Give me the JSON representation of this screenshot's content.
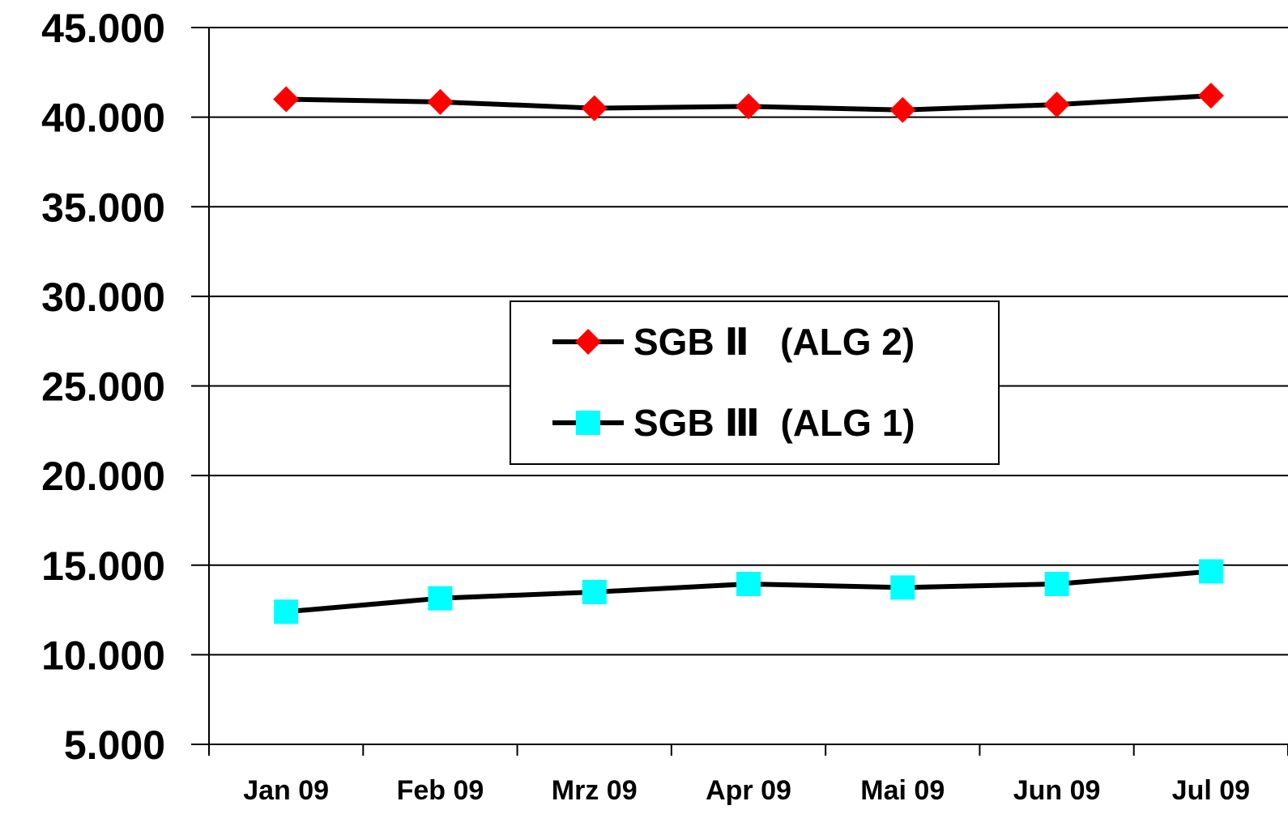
{
  "chart_data": {
    "type": "line",
    "categories": [
      "Jan 09",
      "Feb 09",
      "Mrz 09",
      "Apr 09",
      "Mai 09",
      "Jun 09",
      "Jul 09"
    ],
    "series": [
      {
        "name": "SGB Ⅱ   (ALG 2)",
        "values": [
          41000,
          40850,
          40500,
          40600,
          40400,
          40700,
          41200
        ],
        "marker": "diamond",
        "marker_color": "#ff0000",
        "line_color": "#000000"
      },
      {
        "name": "SGB Ⅲ  (ALG 1)",
        "values": [
          12400,
          13150,
          13500,
          13950,
          13750,
          13950,
          14650
        ],
        "marker": "square",
        "marker_color": "#00ffff",
        "line_color": "#000000"
      }
    ],
    "title": "",
    "xlabel": "",
    "ylabel": "",
    "ylim": [
      5000,
      45000
    ],
    "yticks": [
      5000,
      10000,
      15000,
      20000,
      25000,
      30000,
      35000,
      40000,
      45000
    ],
    "ytick_labels": [
      "5.000",
      "10.000",
      "15.000",
      "20.000",
      "25.000",
      "30.000",
      "35.000",
      "40.000",
      "45.000"
    ],
    "grid": true,
    "legend_position": "center"
  }
}
